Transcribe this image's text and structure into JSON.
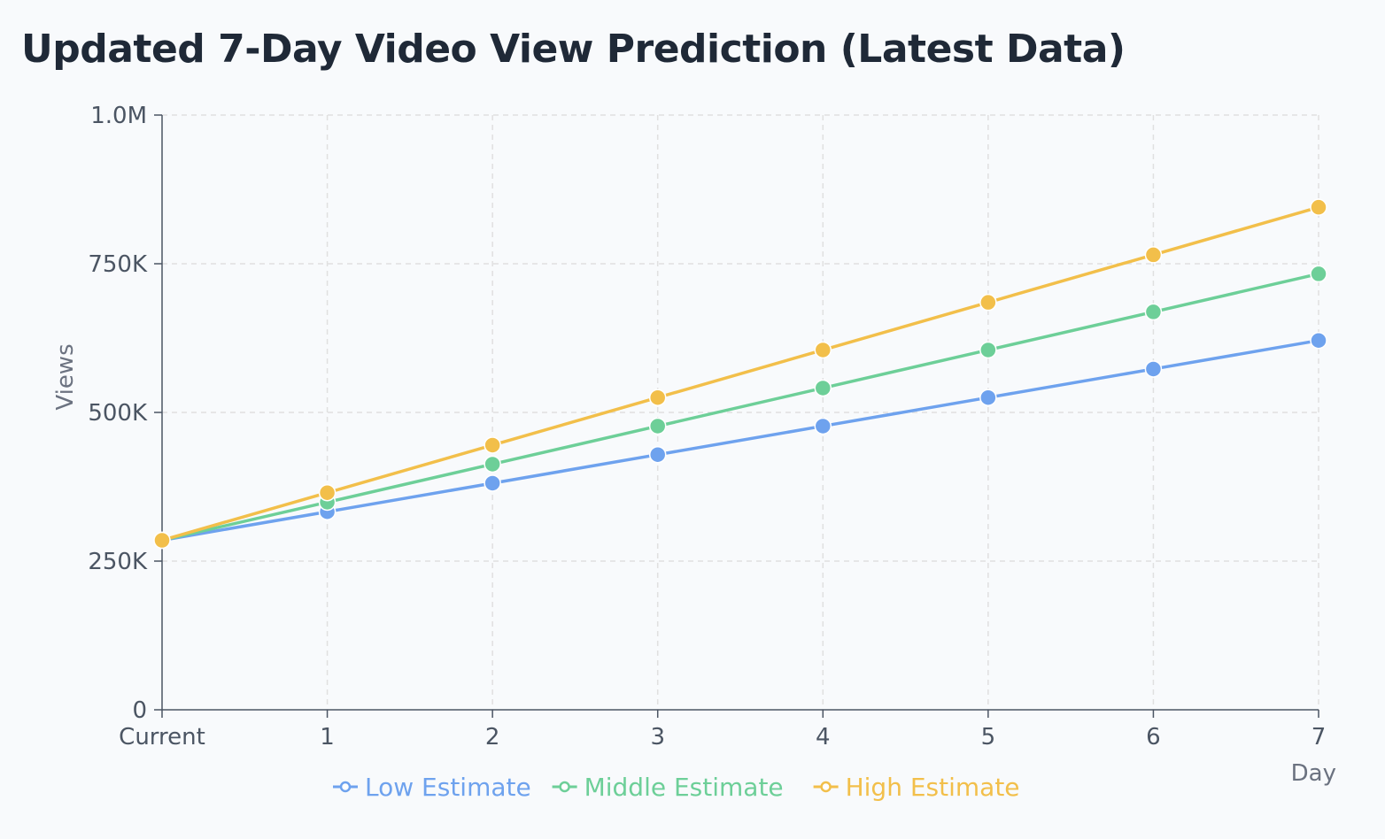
{
  "chart_data": {
    "type": "line",
    "title": "Updated 7-Day Video View Prediction (Latest Data)",
    "xlabel": "Day",
    "ylabel": "Views",
    "categories": [
      "Current",
      "1",
      "2",
      "3",
      "4",
      "5",
      "6",
      "7"
    ],
    "ylim": [
      0,
      1000000
    ],
    "yticks": [
      {
        "value": 0,
        "label": "0"
      },
      {
        "value": 250000,
        "label": "250K"
      },
      {
        "value": 500000,
        "label": "500K"
      },
      {
        "value": 750000,
        "label": "750K"
      },
      {
        "value": 1000000,
        "label": "1.0M"
      }
    ],
    "grid": true,
    "legend_position": "bottom",
    "series": [
      {
        "name": "Low Estimate",
        "color": "#6ea2ee",
        "values": [
          285000,
          333000,
          381000,
          429000,
          477000,
          525000,
          573000,
          621000
        ]
      },
      {
        "name": "Middle Estimate",
        "color": "#6dcf98",
        "values": [
          285000,
          349000,
          413000,
          477000,
          541000,
          605000,
          669000,
          733000
        ]
      },
      {
        "name": "High Estimate",
        "color": "#f2bf4a",
        "values": [
          285000,
          365000,
          445000,
          525000,
          605000,
          685000,
          765000,
          845000
        ]
      }
    ]
  }
}
